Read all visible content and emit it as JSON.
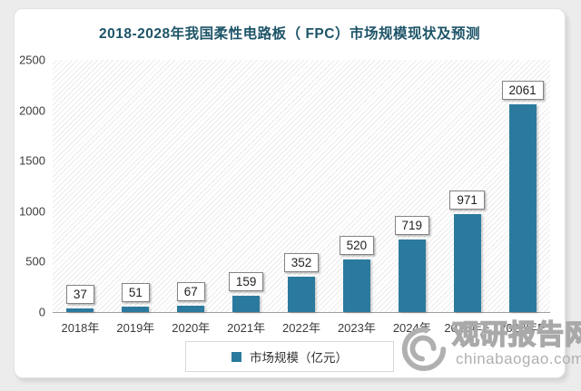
{
  "page": {
    "background": "#ececec",
    "card_background": "#ffffff"
  },
  "title": {
    "text": "2018-2028年我国柔性电路板（ FPC）市场规模现状及预测",
    "color": "#1d5468"
  },
  "chart_data": {
    "type": "bar",
    "categories": [
      "2018年",
      "2019年",
      "2020年",
      "2021年",
      "2022年",
      "2023年",
      "2024年",
      "2025年E",
      "2028年E"
    ],
    "values": [
      37,
      51,
      67,
      159,
      352,
      520,
      719,
      971,
      2061
    ],
    "title": "2018-2028年我国柔性电路板（ FPC）市场规模现状及预测",
    "xlabel": "",
    "ylabel": "",
    "ylim": [
      0,
      2500
    ],
    "yticks": [
      0,
      500,
      1000,
      1500,
      2000,
      2500
    ],
    "bar_color": "#2b7a9e",
    "grid": false,
    "data_labels": true,
    "legend_entries": [
      "市场规模（亿元）"
    ],
    "legend_position": "bottom",
    "plot_background_pattern": "diagonal-hatch"
  },
  "legend": {
    "label": "市场规模（亿元）",
    "marker_color": "#2b7a9e"
  },
  "watermark": {
    "name": "观研报告网",
    "url": "chinabaogao.com",
    "color": "#b0b0b0"
  }
}
